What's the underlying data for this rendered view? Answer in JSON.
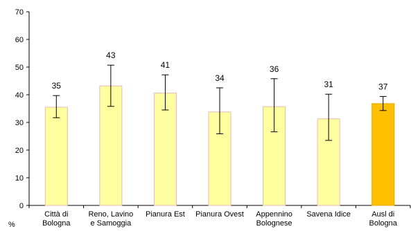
{
  "chart_data": {
    "type": "bar",
    "title": "",
    "xlabel": "",
    "ylabel": "%",
    "ylim": [
      0,
      70
    ],
    "yticks": [
      0,
      10,
      20,
      30,
      40,
      50,
      60,
      70
    ],
    "grid": false,
    "legend": "none",
    "categories": [
      [
        "Città di",
        "Bologna"
      ],
      [
        "Reno, Lavino",
        "e Samoggia"
      ],
      [
        "Pianura Est"
      ],
      [
        "Pianura Ovest"
      ],
      [
        "Appennino",
        "Bolognese"
      ],
      [
        "Savena Idice"
      ],
      [
        "Ausl di",
        "Bologna"
      ]
    ],
    "values": [
      35.5,
      43.2,
      40.6,
      33.8,
      35.7,
      31.3,
      36.8
    ],
    "value_labels": [
      "35",
      "43",
      "41",
      "34",
      "36",
      "31",
      "37"
    ],
    "error_low": [
      31.7,
      35.8,
      34.5,
      25.9,
      26.6,
      23.5,
      34.3
    ],
    "error_high": [
      39.7,
      50.7,
      47.2,
      42.5,
      45.8,
      40.2,
      39.4
    ],
    "colors": {
      "bar_fill": "#FFFFA0",
      "bar_stroke": "#E6B8B8",
      "highlight_fill": "#FFC000",
      "highlight_stroke": "#E0A800",
      "highlight_index": 6,
      "axis": "#000000",
      "error_bar": "#000000"
    }
  }
}
